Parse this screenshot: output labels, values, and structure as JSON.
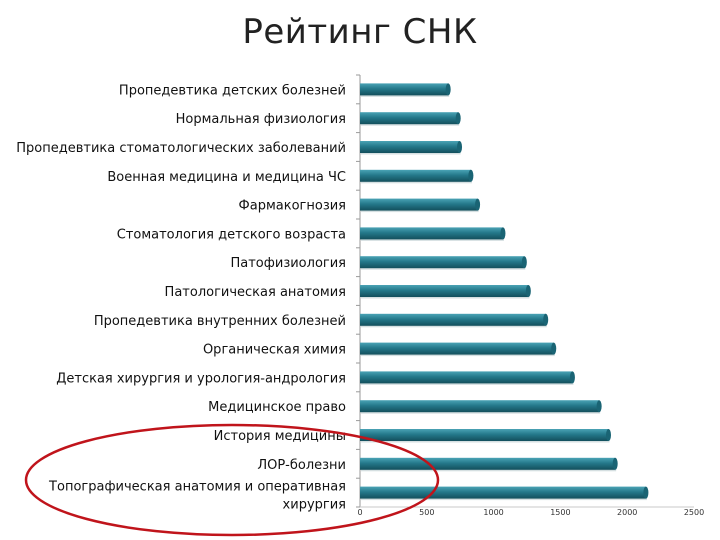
{
  "chart_data": {
    "type": "bar",
    "orientation": "horizontal",
    "title": "Рейтинг СНК",
    "xlabel": "",
    "ylabel": "",
    "xlim": [
      0,
      2500
    ],
    "x_ticks": [
      0,
      500,
      1000,
      1500,
      2000,
      2500
    ],
    "grid": false,
    "legend": "none",
    "categories": [
      "Пропедевтика детских болезней",
      "Нормальная физиология",
      "Пропедевтика стоматологических заболеваний",
      "Военная медицина и медицина ЧС",
      "Фармакогнозия",
      "Стоматология детского возраста",
      "Патофизиология",
      "Патологическая анатомия",
      "Пропедевтика внутренних болезней",
      "Органическая химия",
      "Детская хирургия и урология-андрология",
      "Медицинское право",
      "История медицины",
      "ЛОР-болезни",
      [
        "Топографическая анатомия и оперативная",
        "хирургия"
      ]
    ],
    "values": [
      660,
      735,
      745,
      830,
      880,
      1070,
      1230,
      1260,
      1390,
      1450,
      1590,
      1790,
      1860,
      1910,
      2140
    ],
    "bar_color": "#1f6f80",
    "highlight_ellipse_color": "#c0141b"
  }
}
